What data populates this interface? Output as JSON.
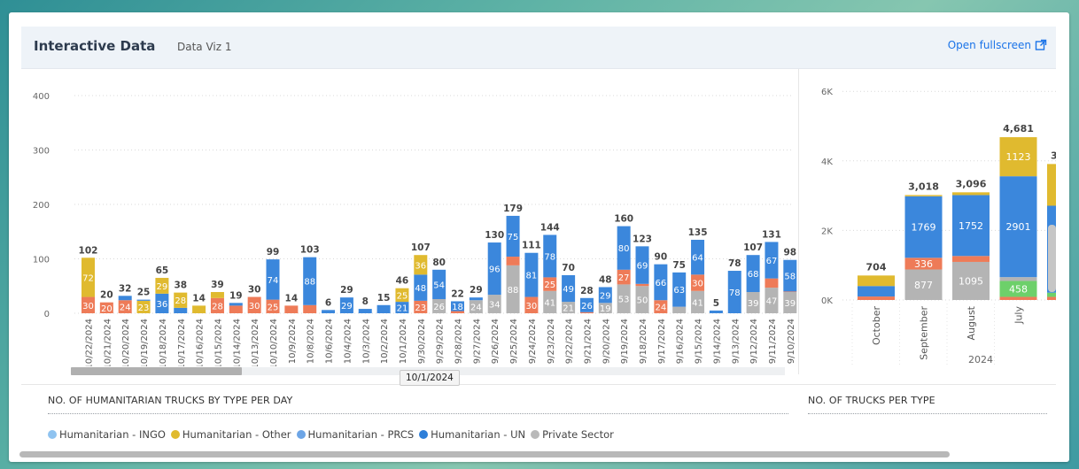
{
  "header": {
    "title": "Interactive Data",
    "subtitle": "Data Viz 1",
    "fullscreen_label": "Open fullscreen"
  },
  "daily_section_title": "NO. OF HUMANITARIAN TRUCKS BY TYPE PER DAY",
  "type_section_title": "NO. OF TRUCKS PER TYPE",
  "tooltip": "10/1/2024",
  "legend": [
    {
      "label": "Humanitarian - INGO",
      "color": "#8fc3f0"
    },
    {
      "label": "Humanitarian - Other",
      "color": "#e0ba2f"
    },
    {
      "label": "Humanitarian - PRCS",
      "color": "#6da5e6"
    },
    {
      "label": "Humanitarian - UN",
      "color": "#2e7fd9"
    },
    {
      "label": "Private Sector",
      "color": "#b9b9b9"
    }
  ],
  "colors": {
    "un": "#3b87dc",
    "other": "#e0ba2f",
    "private": "#b4b4b4",
    "orange": "#ee7b58",
    "green": "#6dd06a"
  },
  "chart_data": [
    {
      "type": "bar",
      "stacked": true,
      "title": "NO. OF HUMANITARIAN TRUCKS BY TYPE PER DAY",
      "ylim": [
        0,
        400
      ],
      "yticks": [
        0,
        100,
        200,
        300,
        400
      ],
      "categories": [
        "10/22/2024",
        "10/21/2024",
        "10/20/2024",
        "10/19/2024",
        "10/18/2024",
        "10/17/2024",
        "10/16/2024",
        "10/15/2024",
        "10/14/2024",
        "10/13/2024",
        "10/10/2024",
        "10/9/2024",
        "10/8/2024",
        "10/6/2024",
        "10/4/2024",
        "10/3/2024",
        "10/2/2024",
        "10/1/2024",
        "9/30/2024",
        "9/29/2024",
        "9/28/2024",
        "9/27/2024",
        "9/26/2024",
        "9/25/2024",
        "9/24/2024",
        "9/23/2024",
        "9/22/2024",
        "9/21/2024",
        "9/20/2024",
        "9/19/2024",
        "9/18/2024",
        "9/17/2024",
        "9/16/2024",
        "9/15/2024",
        "9/14/2024",
        "9/13/2024",
        "9/12/2024",
        "9/11/2024",
        "9/10/2024"
      ],
      "totals": [
        102,
        20,
        32,
        25,
        65,
        38,
        14,
        39,
        19,
        30,
        99,
        14,
        103,
        6,
        29,
        8,
        15,
        46,
        107,
        80,
        22,
        29,
        130,
        179,
        111,
        144,
        70,
        28,
        48,
        160,
        123,
        90,
        75,
        135,
        5,
        78,
        107,
        131,
        98
      ],
      "segments": [
        [
          {
            "k": "orange",
            "v": 30
          },
          {
            "k": "other",
            "v": 72
          }
        ],
        [
          {
            "k": "orange",
            "v": 20
          }
        ],
        [
          {
            "k": "orange",
            "v": 24
          },
          {
            "k": "un",
            "v": 8
          }
        ],
        [
          {
            "k": "other",
            "v": 23
          },
          {
            "k": "un",
            "v": 2
          }
        ],
        [
          {
            "k": "un",
            "v": 36
          },
          {
            "k": "other",
            "v": 29
          }
        ],
        [
          {
            "k": "un",
            "v": 10
          },
          {
            "k": "other",
            "v": 28
          }
        ],
        [
          {
            "k": "other",
            "v": 14
          }
        ],
        [
          {
            "k": "orange",
            "v": 28
          },
          {
            "k": "other",
            "v": 11
          }
        ],
        [
          {
            "k": "orange",
            "v": 14
          },
          {
            "k": "un",
            "v": 5
          }
        ],
        [
          {
            "k": "orange",
            "v": 30
          }
        ],
        [
          {
            "k": "orange",
            "v": 25
          },
          {
            "k": "un",
            "v": 74
          }
        ],
        [
          {
            "k": "orange",
            "v": 14
          }
        ],
        [
          {
            "k": "orange",
            "v": 15
          },
          {
            "k": "un",
            "v": 88
          }
        ],
        [
          {
            "k": "un",
            "v": 6
          }
        ],
        [
          {
            "k": "un",
            "v": 29
          }
        ],
        [
          {
            "k": "un",
            "v": 8
          }
        ],
        [
          {
            "k": "un",
            "v": 15
          }
        ],
        [
          {
            "k": "un",
            "v": 21
          },
          {
            "k": "other",
            "v": 25
          }
        ],
        [
          {
            "k": "orange",
            "v": 23
          },
          {
            "k": "un",
            "v": 48
          },
          {
            "k": "other",
            "v": 36
          }
        ],
        [
          {
            "k": "private",
            "v": 26
          },
          {
            "k": "un",
            "v": 54
          }
        ],
        [
          {
            "k": "orange",
            "v": 4
          },
          {
            "k": "un",
            "v": 18
          }
        ],
        [
          {
            "k": "private",
            "v": 24
          },
          {
            "k": "un",
            "v": 5
          }
        ],
        [
          {
            "k": "private",
            "v": 34
          },
          {
            "k": "un",
            "v": 96
          }
        ],
        [
          {
            "k": "private",
            "v": 88
          },
          {
            "k": "orange",
            "v": 16
          },
          {
            "k": "un",
            "v": 75
          }
        ],
        [
          {
            "k": "orange",
            "v": 30
          },
          {
            "k": "un",
            "v": 81
          }
        ],
        [
          {
            "k": "private",
            "v": 41
          },
          {
            "k": "orange",
            "v": 25
          },
          {
            "k": "un",
            "v": 78
          }
        ],
        [
          {
            "k": "private",
            "v": 21
          },
          {
            "k": "un",
            "v": 49
          }
        ],
        [
          {
            "k": "orange",
            "v": 2
          },
          {
            "k": "un",
            "v": 26
          }
        ],
        [
          {
            "k": "private",
            "v": 19
          },
          {
            "k": "un",
            "v": 29
          }
        ],
        [
          {
            "k": "private",
            "v": 53
          },
          {
            "k": "orange",
            "v": 27
          },
          {
            "k": "un",
            "v": 80
          }
        ],
        [
          {
            "k": "private",
            "v": 50
          },
          {
            "k": "orange",
            "v": 4
          },
          {
            "k": "un",
            "v": 69
          }
        ],
        [
          {
            "k": "orange",
            "v": 24
          },
          {
            "k": "un",
            "v": 66
          }
        ],
        [
          {
            "k": "private",
            "v": 12
          },
          {
            "k": "un",
            "v": 63
          }
        ],
        [
          {
            "k": "private",
            "v": 41
          },
          {
            "k": "orange",
            "v": 30
          },
          {
            "k": "un",
            "v": 64
          }
        ],
        [
          {
            "k": "un",
            "v": 5
          }
        ],
        [
          {
            "k": "un",
            "v": 78
          }
        ],
        [
          {
            "k": "private",
            "v": 39
          },
          {
            "k": "un",
            "v": 68
          }
        ],
        [
          {
            "k": "private",
            "v": 47
          },
          {
            "k": "orange",
            "v": 17
          },
          {
            "k": "un",
            "v": 67
          }
        ],
        [
          {
            "k": "private",
            "v": 39
          },
          {
            "k": "orange",
            "v": 1
          },
          {
            "k": "un",
            "v": 58
          }
        ]
      ]
    },
    {
      "type": "bar",
      "stacked": true,
      "title": "NO. OF TRUCKS PER TYPE",
      "ylim": [
        0,
        6000
      ],
      "yticks": [
        "0K",
        "2K",
        "4K",
        "6K"
      ],
      "ytick_values": [
        0,
        2000,
        4000,
        6000
      ],
      "categories": [
        "October",
        "September",
        "August",
        "July"
      ],
      "year_label": "2024",
      "totals": [
        704,
        3018,
        3096,
        4681
      ],
      "segments": [
        [
          {
            "k": "orange",
            "v": 100
          },
          {
            "k": "un",
            "v": 301
          },
          {
            "k": "other",
            "v": 303
          }
        ],
        [
          {
            "k": "private",
            "v": 877
          },
          {
            "k": "orange",
            "v": 336
          },
          {
            "k": "un",
            "v": 1769
          },
          {
            "k": "other",
            "v": 36
          }
        ],
        [
          {
            "k": "private",
            "v": 1095
          },
          {
            "k": "orange",
            "v": 170
          },
          {
            "k": "un",
            "v": 1752
          },
          {
            "k": "other",
            "v": 79
          }
        ],
        [
          {
            "k": "orange",
            "v": 90
          },
          {
            "k": "green",
            "v": 458
          },
          {
            "k": "private",
            "v": 109
          },
          {
            "k": "un",
            "v": 2901
          },
          {
            "k": "other",
            "v": 1123
          }
        ]
      ],
      "partial_next_total_label": "3"
    }
  ]
}
